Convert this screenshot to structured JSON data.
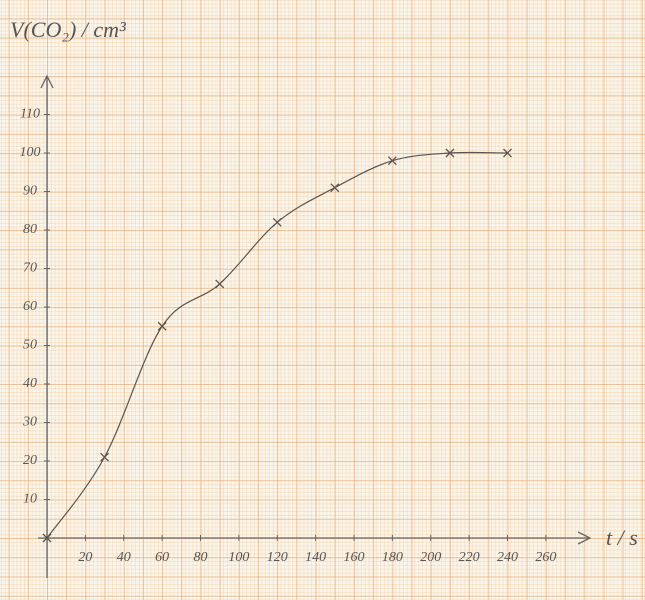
{
  "chart_data": {
    "type": "scatter",
    "y_label": "V(CO₂) / cm³",
    "x_label": "t / s",
    "x": [
      0,
      30,
      60,
      90,
      120,
      150,
      180,
      210,
      240
    ],
    "values": [
      0,
      21,
      55,
      66,
      82,
      91,
      98,
      100,
      100
    ],
    "color": "#5a5550",
    "curve": true,
    "xlim": [
      0,
      283
    ],
    "ylim": [
      0,
      120
    ],
    "xticks": [
      20,
      40,
      60,
      80,
      100,
      120,
      140,
      160,
      180,
      200,
      220,
      240,
      260
    ],
    "yticks": [
      10,
      20,
      30,
      40,
      50,
      60,
      70,
      80,
      90,
      100,
      110
    ]
  }
}
